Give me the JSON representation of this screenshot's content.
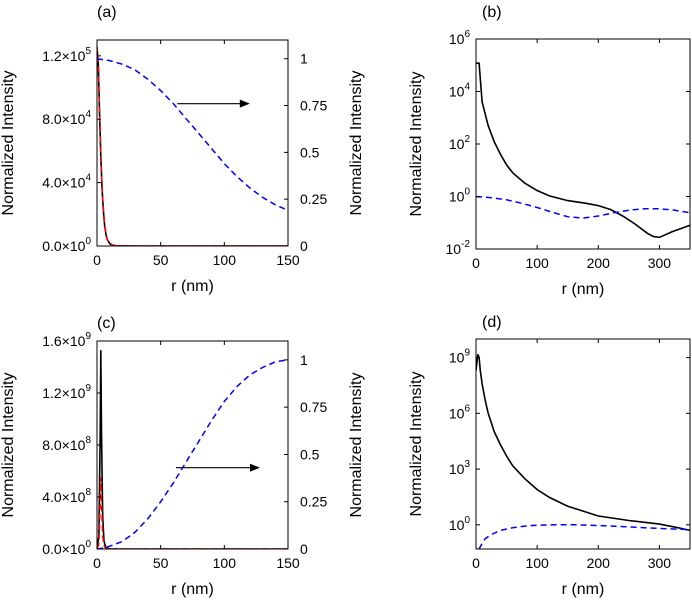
{
  "chart_data": [
    {
      "panel": "(a)",
      "type": "line",
      "xlabel": "r (nm)",
      "ylabel": "Normalized Intensity",
      "ylabel_right": "Normalized Intensity",
      "xlim": [
        0,
        150
      ],
      "ylim": [
        0,
        130000
      ],
      "ylim_right": [
        0,
        1.1
      ],
      "xticks": [
        "0",
        "50",
        "100",
        "150"
      ],
      "yticks": [
        {
          "value": 0,
          "mant": "0.0×10",
          "exp": "0"
        },
        {
          "value": 40000,
          "mant": "4.0×10",
          "exp": "4"
        },
        {
          "value": 80000,
          "mant": "8.0×10",
          "exp": "4"
        },
        {
          "value": 120000,
          "mant": "1.2×10",
          "exp": "5"
        }
      ],
      "yticks_right": [
        "0",
        "0.25",
        "0.5",
        "0.75",
        "1"
      ],
      "arrow": {
        "from": [
          63,
          0.76
        ],
        "to": [
          120,
          0.76
        ],
        "direction": "right"
      },
      "series": [
        {
          "style": "solid",
          "color": "#000000",
          "axis": "left",
          "x": [
            0,
            1,
            2,
            3,
            4,
            5,
            6,
            7,
            8,
            10,
            12,
            15,
            20,
            30,
            50,
            150
          ],
          "y": [
            125000,
            115000,
            85000,
            57000,
            36000,
            22000,
            13000,
            7500,
            4200,
            1500,
            600,
            150,
            40,
            10,
            2,
            0
          ]
        },
        {
          "style": "dashed",
          "color": "#ff0000",
          "axis": "left",
          "x": [
            0,
            1,
            2,
            3,
            4,
            5,
            6,
            7,
            8,
            10,
            12,
            15,
            20,
            30,
            50,
            150
          ],
          "y": [
            126000,
            116000,
            86000,
            58000,
            37000,
            23000,
            13500,
            7800,
            4400,
            1600,
            650,
            160,
            45,
            12,
            3,
            0
          ]
        },
        {
          "style": "dashed",
          "color": "#0000ff",
          "axis": "right",
          "x": [
            0,
            10,
            20,
            30,
            40,
            50,
            60,
            70,
            80,
            90,
            100,
            110,
            120,
            130,
            140,
            150
          ],
          "y": [
            1.0,
            0.99,
            0.97,
            0.94,
            0.89,
            0.83,
            0.76,
            0.68,
            0.6,
            0.52,
            0.44,
            0.37,
            0.31,
            0.26,
            0.22,
            0.19
          ]
        }
      ]
    },
    {
      "panel": "(b)",
      "type": "line",
      "scale_y": "log",
      "xlabel": "r (nm)",
      "ylabel": "Normalized Intensity",
      "xlim": [
        0,
        350
      ],
      "ylim": [
        0.01,
        1000000
      ],
      "xticks": [
        "0",
        "100",
        "200",
        "300"
      ],
      "yticks": [
        {
          "value": 0.01,
          "mant": "10",
          "exp": "-2"
        },
        {
          "value": 1,
          "mant": "10",
          "exp": "0"
        },
        {
          "value": 100,
          "mant": "10",
          "exp": "2"
        },
        {
          "value": 10000,
          "mant": "10",
          "exp": "4"
        },
        {
          "value": 1000000,
          "mant": "10",
          "exp": "6"
        }
      ],
      "series": [
        {
          "style": "solid",
          "color": "#000000",
          "x": [
            0,
            5,
            10,
            20,
            30,
            40,
            50,
            60,
            80,
            100,
            120,
            150,
            180,
            200,
            220,
            240,
            260,
            280,
            290,
            300,
            310,
            320,
            335,
            350
          ],
          "y": [
            120000,
            120000,
            4000,
            500,
            120,
            40,
            16,
            8,
            3.2,
            1.7,
            1.05,
            0.7,
            0.55,
            0.45,
            0.32,
            0.18,
            0.09,
            0.04,
            0.03,
            0.028,
            0.035,
            0.045,
            0.06,
            0.08
          ]
        },
        {
          "style": "dashed",
          "color": "#0000ff",
          "x": [
            0,
            25,
            50,
            75,
            100,
            125,
            150,
            175,
            200,
            225,
            250,
            275,
            300,
            325,
            350
          ],
          "y": [
            1.0,
            0.9,
            0.75,
            0.55,
            0.38,
            0.25,
            0.17,
            0.15,
            0.18,
            0.24,
            0.3,
            0.34,
            0.34,
            0.3,
            0.24
          ]
        }
      ]
    },
    {
      "panel": "(c)",
      "type": "line",
      "xlabel": "r (nm)",
      "ylabel": "Normalized Intensity",
      "ylabel_right": "Normalized Intensity",
      "xlim": [
        0,
        150
      ],
      "ylim": [
        0,
        1600000000
      ],
      "ylim_right": [
        0,
        1.1
      ],
      "xticks": [
        "0",
        "50",
        "100",
        "150"
      ],
      "yticks": [
        {
          "value": 0,
          "mant": "0.0×10",
          "exp": "0"
        },
        {
          "value": 400000000,
          "mant": "4.0×10",
          "exp": "8"
        },
        {
          "value": 800000000,
          "mant": "8.0×10",
          "exp": "8"
        },
        {
          "value": 1200000000,
          "mant": "1.2×10",
          "exp": "9"
        },
        {
          "value": 1600000000,
          "mant": "1.6×10",
          "exp": "9"
        }
      ],
      "yticks_right": [
        "0",
        "0.25",
        "0.5",
        "0.75",
        "1"
      ],
      "arrow": {
        "from": [
          62,
          0.43
        ],
        "to": [
          128,
          0.43
        ],
        "direction": "right"
      },
      "series": [
        {
          "style": "solid",
          "color": "#000000",
          "axis": "left",
          "x": [
            0,
            1.5,
            2.5,
            3,
            3.5,
            4.5,
            5.5,
            7,
            10,
            20,
            150
          ],
          "y": [
            0,
            100000000,
            900000000,
            1530000000,
            900000000,
            250000000,
            60000000,
            10000000,
            1000000,
            0,
            0
          ]
        },
        {
          "style": "dashed",
          "color": "#ff0000",
          "axis": "left",
          "x": [
            0,
            1.5,
            2.5,
            3,
            3.5,
            4.5,
            5.5,
            7,
            10,
            20,
            150
          ],
          "y": [
            0,
            40000000,
            350000000,
            550000000,
            360000000,
            100000000,
            25000000,
            4000000,
            500000,
            0,
            0
          ]
        },
        {
          "style": "dashed",
          "color": "#0000ff",
          "axis": "right",
          "x": [
            0,
            5,
            10,
            20,
            30,
            40,
            50,
            60,
            70,
            80,
            90,
            100,
            110,
            120,
            130,
            140,
            150
          ],
          "y": [
            0.0,
            0.005,
            0.015,
            0.04,
            0.09,
            0.16,
            0.25,
            0.35,
            0.46,
            0.57,
            0.68,
            0.78,
            0.86,
            0.92,
            0.96,
            0.99,
            1.0
          ]
        }
      ]
    },
    {
      "panel": "(d)",
      "type": "line",
      "scale_y": "log",
      "xlabel": "r (nm)",
      "ylabel": "Normalized Intensity",
      "xlim": [
        0,
        350
      ],
      "ylim": [
        0.05,
        10000000000
      ],
      "xticks": [
        "0",
        "100",
        "200",
        "300"
      ],
      "yticks": [
        {
          "value": 1,
          "mant": "10",
          "exp": "0"
        },
        {
          "value": 1000,
          "mant": "10",
          "exp": "3"
        },
        {
          "value": 1000000,
          "mant": "10",
          "exp": "6"
        },
        {
          "value": 1000000000,
          "mant": "10",
          "exp": "9"
        }
      ],
      "series": [
        {
          "style": "solid",
          "color": "#000000",
          "x": [
            0,
            3,
            5,
            7,
            10,
            15,
            20,
            30,
            40,
            50,
            60,
            80,
            100,
            120,
            150,
            200,
            250,
            300,
            330,
            350
          ],
          "y": [
            200000000,
            1500000000,
            1000000000,
            200000000,
            40000000,
            5000000,
            1000000,
            100000,
            20000,
            5000,
            1500,
            300,
            80,
            30,
            10,
            3,
            1.7,
            1.1,
            0.7,
            0.5
          ]
        },
        {
          "style": "dashed",
          "color": "#0000ff",
          "x": [
            5,
            10,
            15,
            25,
            40,
            60,
            80,
            100,
            130,
            160,
            200,
            240,
            280,
            320,
            350
          ],
          "y": [
            0.05,
            0.1,
            0.18,
            0.3,
            0.5,
            0.7,
            0.85,
            0.95,
            1.0,
            1.0,
            0.92,
            0.8,
            0.68,
            0.6,
            0.55
          ]
        }
      ]
    }
  ]
}
